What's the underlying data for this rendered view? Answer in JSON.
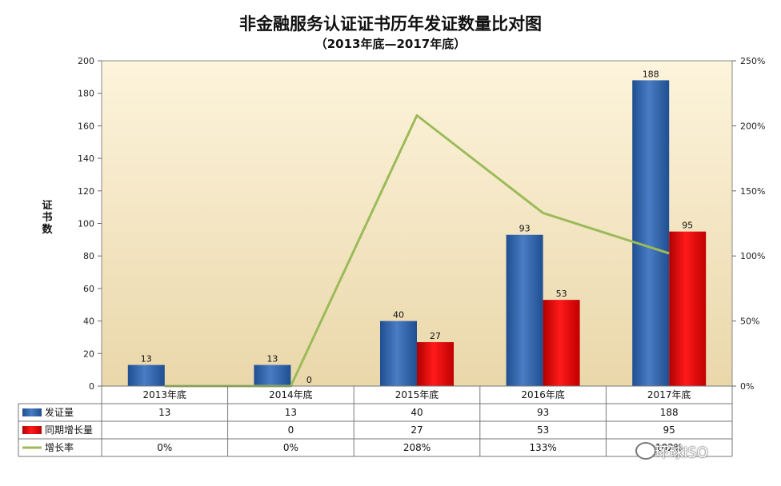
{
  "chart_data": {
    "type": "bar",
    "title": "非金融服务认证证书历年发证数量比对图",
    "subtitle": "（2013年底—2017年底）",
    "ylabel": "证书数",
    "categories": [
      "2013年底",
      "2014年底",
      "2015年底",
      "2016年底",
      "2017年底"
    ],
    "ylim": [
      0,
      200
    ],
    "yticks": [
      0,
      20,
      40,
      60,
      80,
      100,
      120,
      140,
      160,
      180,
      200
    ],
    "y2lim": [
      0,
      250
    ],
    "y2ticks": [
      "0%",
      "50%",
      "100%",
      "150%",
      "200%",
      "250%"
    ],
    "series": [
      {
        "name": "发证量",
        "type": "bar",
        "values": [
          13,
          13,
          40,
          93,
          188
        ],
        "labels": [
          "13",
          "13",
          "40",
          "93",
          "188"
        ],
        "color": "#2e5fa3"
      },
      {
        "name": "同期增长量",
        "type": "bar",
        "values": [
          null,
          0,
          27,
          53,
          95
        ],
        "labels": [
          "",
          "0",
          "27",
          "53",
          "95"
        ],
        "color": "#dd0a0a"
      },
      {
        "name": "增长率",
        "type": "line",
        "axis": "right",
        "values": [
          0,
          0,
          208,
          133,
          102
        ],
        "labels": [
          "0%",
          "0%",
          "208%",
          "133%",
          "102%"
        ],
        "color": "#9bbb59"
      }
    ],
    "grid": false,
    "legend": "data-table"
  },
  "watermark": "环球ISO"
}
